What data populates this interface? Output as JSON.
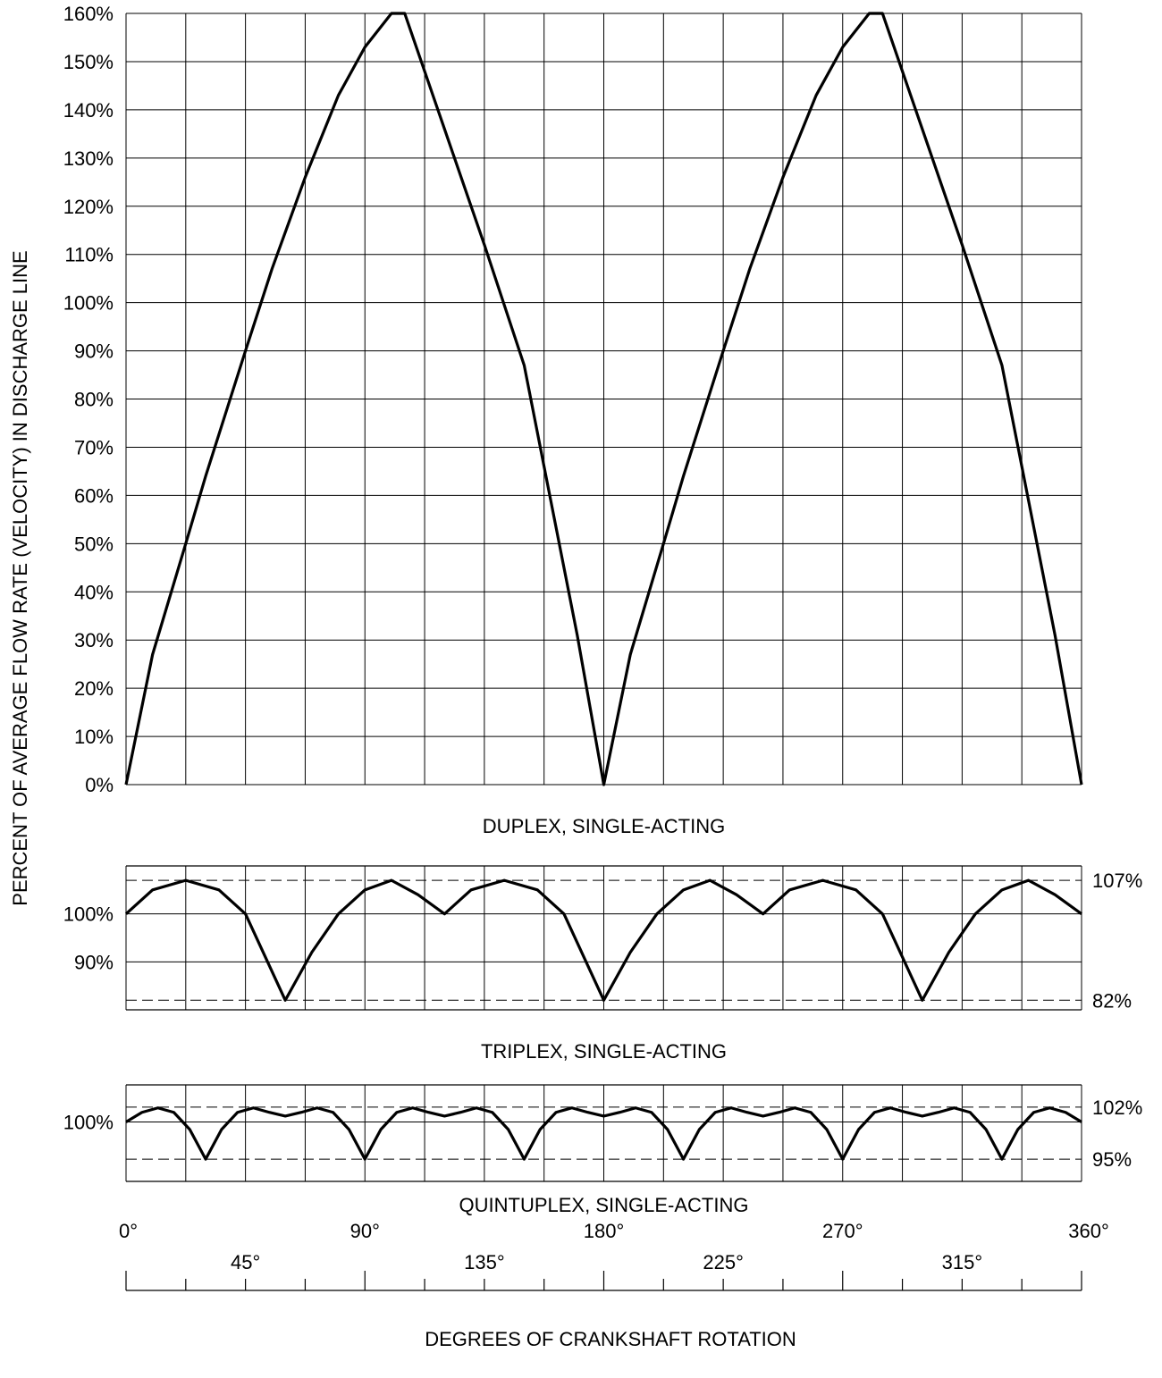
{
  "chart_data": [
    {
      "id": "duplex",
      "type": "line",
      "title": "DUPLEX, SINGLE-ACTING",
      "ylim": [
        0,
        160
      ],
      "xlim": [
        0,
        360
      ],
      "grid": true,
      "ytick_values": [
        0,
        10,
        20,
        30,
        40,
        50,
        60,
        70,
        80,
        90,
        100,
        110,
        120,
        130,
        140,
        150,
        160
      ],
      "ytick_labels": [
        "0%",
        "10%",
        "20%",
        "30%",
        "40%",
        "50%",
        "60%",
        "70%",
        "80%",
        "90%",
        "100%",
        "110%",
        "120%",
        "130%",
        "140%",
        "150%",
        "160%"
      ],
      "series": [
        {
          "x": [
            0,
            10,
            22.5,
            30,
            45,
            55,
            67.5,
            80,
            90,
            100,
            105,
            120,
            135,
            150,
            157.5,
            170,
            180,
            190,
            202.5,
            210,
            225,
            235,
            247.5,
            260,
            270,
            280,
            285,
            300,
            315,
            330,
            337.5,
            350,
            360
          ],
          "values": [
            0,
            27,
            50,
            64,
            90,
            107,
            126,
            143,
            153,
            160,
            160,
            136,
            112,
            87,
            66,
            31,
            0,
            27,
            50,
            64,
            90,
            107,
            126,
            143,
            153,
            160,
            160,
            136,
            112,
            87,
            66,
            31,
            0
          ]
        }
      ]
    },
    {
      "id": "triplex",
      "type": "line",
      "title": "TRIPLEX, SINGLE-ACTING",
      "ylim": [
        80,
        110
      ],
      "xlim": [
        0,
        360
      ],
      "grid": true,
      "ytick_values": [
        90,
        100
      ],
      "ytick_labels": [
        "90%",
        "100%"
      ],
      "reference_lines": [
        {
          "value": 107,
          "label": "107%"
        },
        {
          "value": 82,
          "label": "82%"
        }
      ],
      "series": [
        {
          "x": [
            0,
            10,
            22.5,
            35,
            45,
            60,
            70,
            80,
            90,
            100,
            110,
            120,
            130,
            142.5,
            155,
            165,
            180,
            190,
            200,
            210,
            220,
            230,
            240,
            250,
            262.5,
            275,
            285,
            300,
            310,
            320,
            330,
            340,
            350,
            360
          ],
          "values": [
            100,
            105,
            107,
            105,
            100,
            82,
            92,
            100,
            105,
            107,
            104,
            100,
            105,
            107,
            105,
            100,
            82,
            92,
            100,
            105,
            107,
            104,
            100,
            105,
            107,
            105,
            100,
            82,
            92,
            100,
            105,
            107,
            104,
            100
          ]
        }
      ]
    },
    {
      "id": "quintuplex",
      "type": "line",
      "title": "QUINTUPLEX, SINGLE-ACTING",
      "ylim": [
        92,
        105
      ],
      "xlim": [
        0,
        360
      ],
      "grid": true,
      "ytick_values": [
        100
      ],
      "ytick_labels": [
        "100%"
      ],
      "reference_lines": [
        {
          "value": 102,
          "label": "102%"
        },
        {
          "value": 95,
          "label": "95%"
        }
      ],
      "series": [
        {
          "x": [
            0,
            6,
            12,
            18,
            24,
            30,
            36,
            42,
            48,
            54,
            60,
            66,
            72,
            78,
            84,
            90,
            96,
            102,
            108,
            114,
            120,
            126,
            132,
            138,
            144,
            150,
            156,
            162,
            168,
            174,
            180,
            186,
            192,
            198,
            204,
            210,
            216,
            222,
            228,
            234,
            240,
            246,
            252,
            258,
            264,
            270,
            276,
            282,
            288,
            294,
            300,
            306,
            312,
            318,
            324,
            330,
            336,
            342,
            348,
            354,
            360
          ],
          "values": [
            100,
            101.3,
            101.9,
            101.3,
            99,
            95,
            99,
            101.3,
            101.9,
            101.3,
            100.8,
            101.3,
            101.9,
            101.3,
            99,
            95,
            99,
            101.3,
            101.9,
            101.3,
            100.8,
            101.3,
            101.9,
            101.3,
            99,
            95,
            99,
            101.3,
            101.9,
            101.3,
            100.8,
            101.3,
            101.9,
            101.3,
            99,
            95,
            99,
            101.3,
            101.9,
            101.3,
            100.8,
            101.3,
            101.9,
            101.3,
            99,
            95,
            99,
            101.3,
            101.9,
            101.3,
            100.8,
            101.3,
            101.9,
            101.3,
            99,
            95,
            99,
            101.3,
            101.9,
            101.3,
            100
          ]
        }
      ]
    }
  ],
  "shared": {
    "ylabel": "PERCENT OF AVERAGE FLOW RATE (VELOCITY) IN DISCHARGE LINE",
    "xlabel": "DEGREES OF CRANKSHAFT ROTATION",
    "xaxis": {
      "range": [
        0,
        360
      ],
      "minor_step": 22.5,
      "major_labels": [
        {
          "value": 0,
          "label": "0°"
        },
        {
          "value": 90,
          "label": "90°"
        },
        {
          "value": 180,
          "label": "180°"
        },
        {
          "value": 270,
          "label": "270°"
        },
        {
          "value": 360,
          "label": "360°"
        }
      ],
      "offset_labels": [
        {
          "value": 45,
          "label": "45°"
        },
        {
          "value": 135,
          "label": "135°"
        },
        {
          "value": 225,
          "label": "225°"
        },
        {
          "value": 315,
          "label": "315°"
        }
      ]
    }
  }
}
